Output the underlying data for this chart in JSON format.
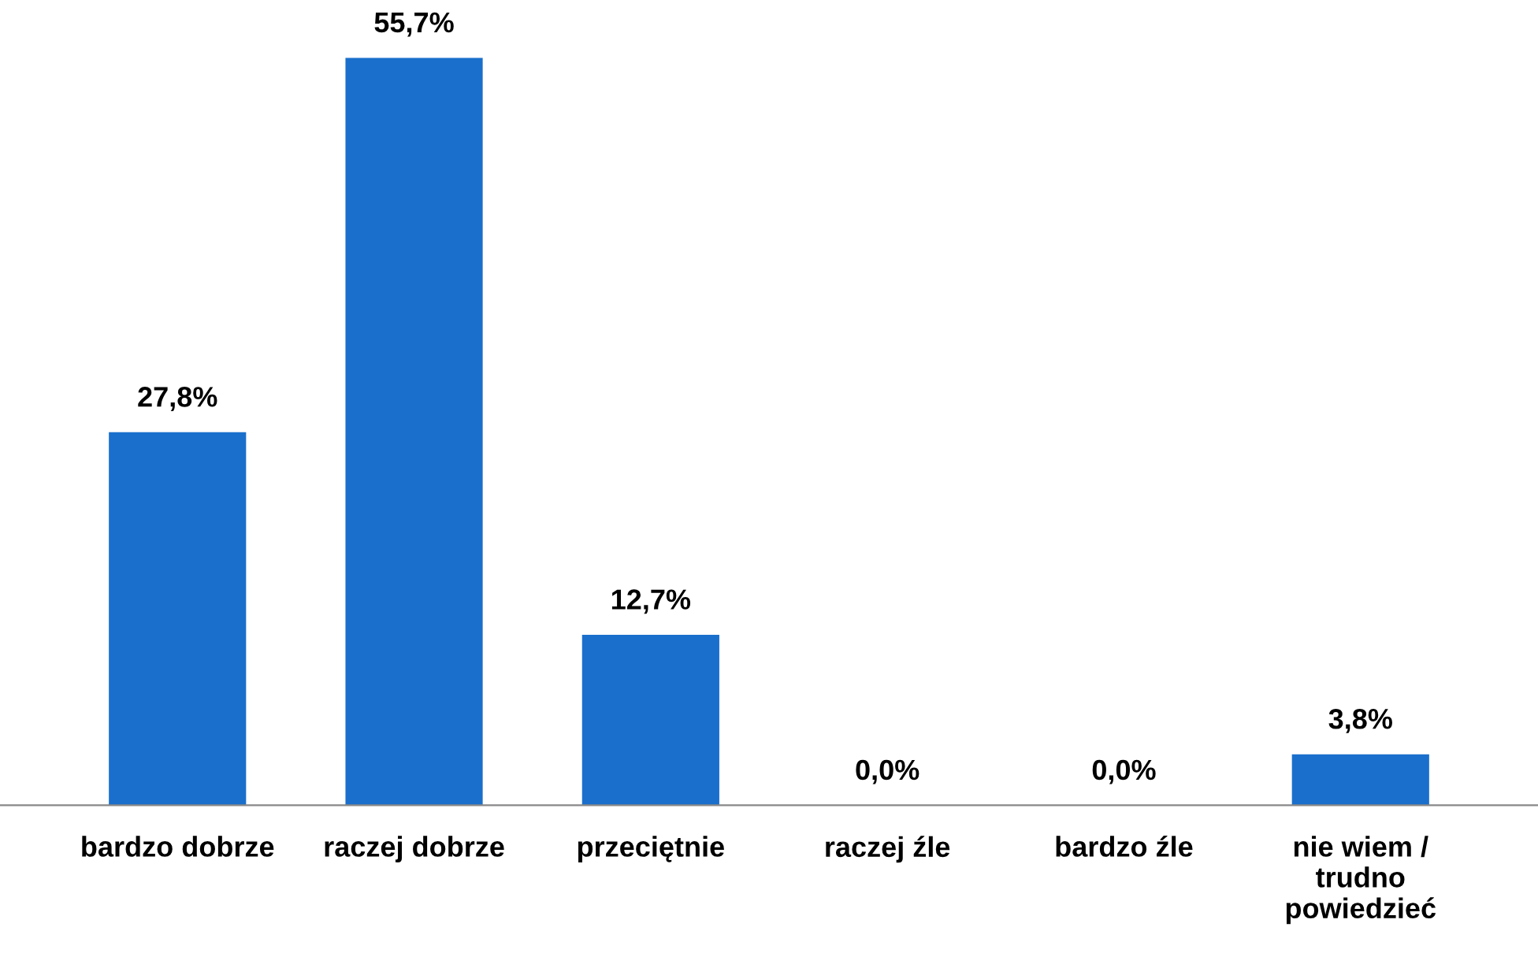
{
  "chart_data": {
    "type": "bar",
    "categories": [
      "bardzo dobrze",
      "raczej dobrze",
      "przeciętnie",
      "raczej źle",
      "bardzo źle",
      "nie wiem /\ntrudno\npowiedzieć"
    ],
    "values": [
      27.8,
      55.7,
      12.7,
      0.0,
      0.0,
      3.8
    ],
    "value_labels": [
      "27,8%",
      "55,7%",
      "12,7%",
      "0,0%",
      "0,0%",
      "3,8%"
    ],
    "color": "#1a6fcc",
    "grid": false,
    "legend": false
  }
}
